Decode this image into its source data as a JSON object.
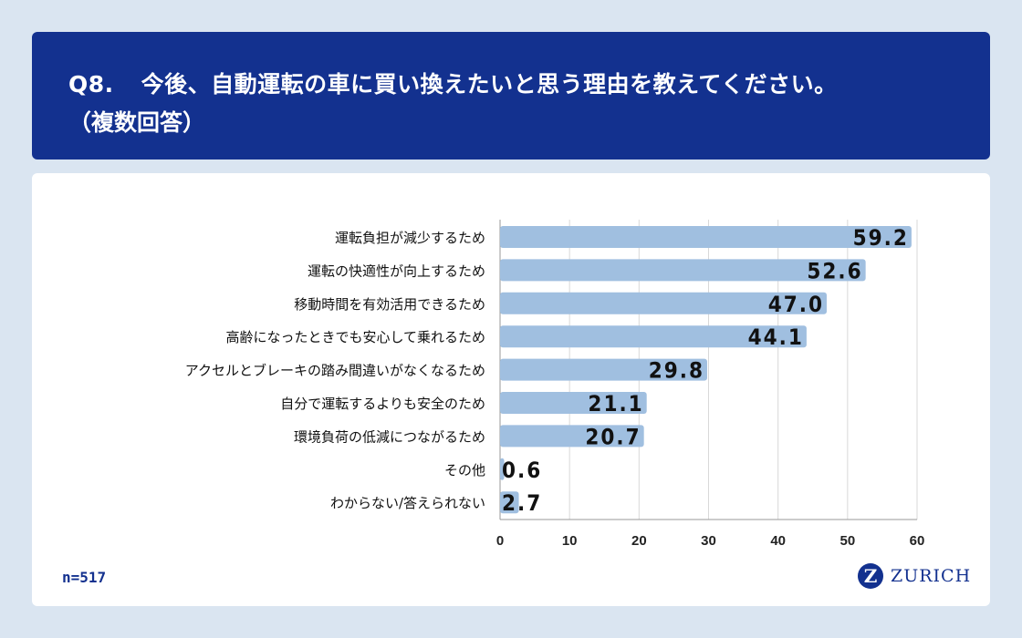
{
  "header": {
    "qnum": "Q8.",
    "question": "今後、自動運転の車に買い換えたいと思う理由を教えてください。",
    "sub": "（複数回答）"
  },
  "footer": {
    "n": "n=517",
    "brand": "ZURICH",
    "logo_letter": "Z"
  },
  "colors": {
    "bar": "#a0bfe0",
    "header": "#13318f",
    "grid": "#d9d9d9"
  },
  "chart_data": {
    "type": "bar",
    "orientation": "horizontal",
    "categories": [
      "運転負担が減少するため",
      "運転の快適性が向上するため",
      "移動時間を有効活用できるため",
      "高齢になったときでも安心して乗れるため",
      "アクセルとブレーキの踏み間違いがなくなるため",
      "自分で運転するよりも安全のため",
      "環境負荷の低減につながるため",
      "その他",
      "わからない/答えられない"
    ],
    "values": [
      59.2,
      52.6,
      47.0,
      44.1,
      29.8,
      21.1,
      20.7,
      0.6,
      2.7
    ],
    "labels": [
      "59.2",
      "52.6",
      "47.0",
      "44.1",
      "29.8",
      "21.1",
      "20.7",
      "0.6",
      "2.7"
    ],
    "xlim": [
      0,
      60
    ],
    "ticks": [
      "0",
      "10",
      "20",
      "30",
      "40",
      "50",
      "60"
    ],
    "grid": true
  }
}
